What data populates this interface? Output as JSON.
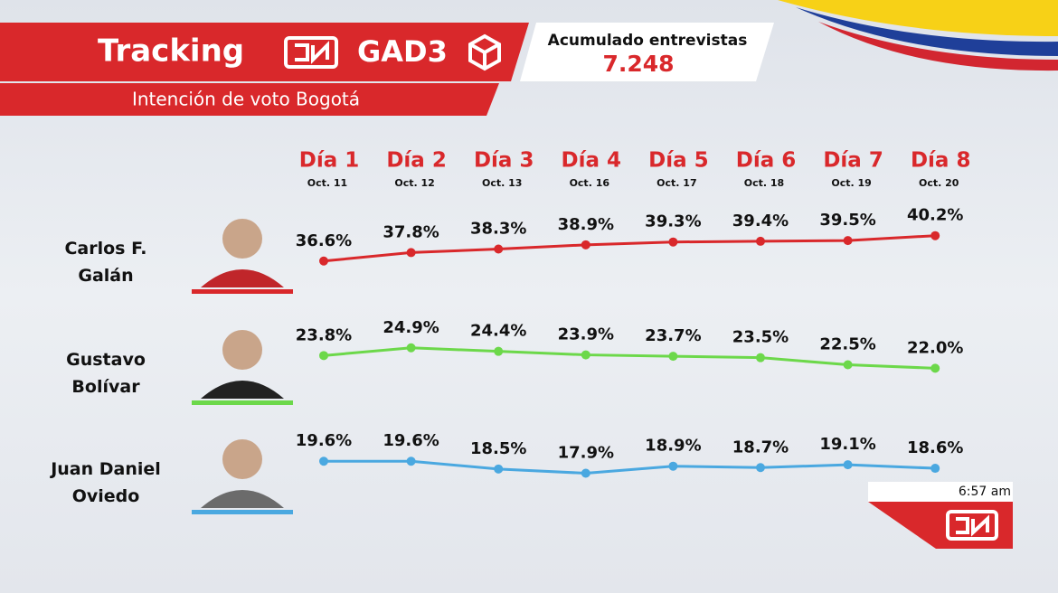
{
  "header": {
    "title": "Tracking",
    "brand": "GAD3",
    "subtitle": "Intención de voto Bogotá",
    "interviews_label": "Acumulado entrevistas",
    "interviews": "7.248"
  },
  "clock": "6:57 am",
  "chart_data": {
    "type": "line",
    "categories": [
      "Día 1",
      "Día 2",
      "Día 3",
      "Día 4",
      "Día 5",
      "Día 6",
      "Día 7",
      "Día 8"
    ],
    "dates": [
      "Oct. 11",
      "Oct. 12",
      "Oct. 13",
      "Oct. 16",
      "Oct. 17",
      "Oct. 18",
      "Oct. 19",
      "Oct. 20"
    ],
    "series": [
      {
        "name": "Carlos F. Galán",
        "color": "#d9282b",
        "values": [
          36.6,
          37.8,
          38.3,
          38.9,
          39.3,
          39.4,
          39.5,
          40.2
        ],
        "value_labels": [
          "36.6%",
          "37.8%",
          "38.3%",
          "38.9%",
          "39.3%",
          "39.4%",
          "39.5%",
          "40.2%"
        ]
      },
      {
        "name": "Gustavo Bolívar",
        "color": "#6cd84a",
        "values": [
          23.8,
          24.9,
          24.4,
          23.9,
          23.7,
          23.5,
          22.5,
          22.0
        ],
        "value_labels": [
          "23.8%",
          "24.9%",
          "24.4%",
          "23.9%",
          "23.7%",
          "23.5%",
          "22.5%",
          "22.0%"
        ]
      },
      {
        "name": "Juan Daniel Oviedo",
        "color": "#4aa8e0",
        "values": [
          19.6,
          19.6,
          18.5,
          17.9,
          18.9,
          18.7,
          19.1,
          18.6
        ],
        "value_labels": [
          "19.6%",
          "19.6%",
          "18.5%",
          "17.9%",
          "18.9%",
          "18.7%",
          "19.1%",
          "18.6%"
        ]
      }
    ]
  }
}
